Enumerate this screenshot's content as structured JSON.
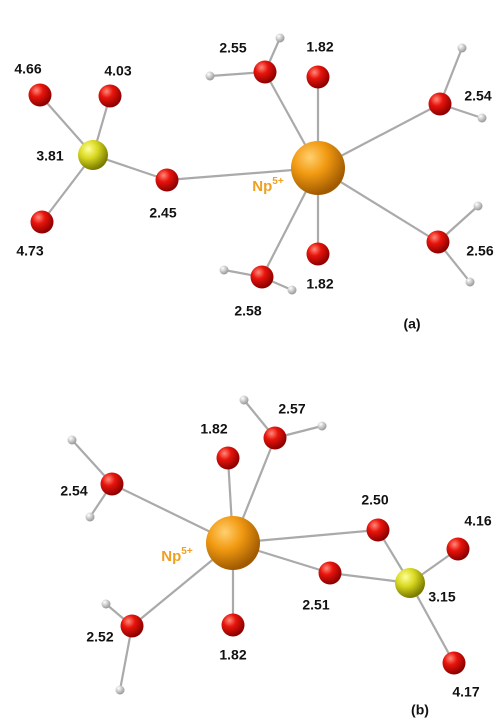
{
  "panels": [
    {
      "label": "(a)",
      "ion": {
        "symbol": "Np",
        "charge": "5+"
      },
      "sulfur": "3.81",
      "oxygens": [
        "4.66",
        "4.03",
        "4.73",
        "2.45",
        "2.55",
        "1.82",
        "2.54",
        "2.56",
        "1.82",
        "2.58"
      ]
    },
    {
      "label": "(b)",
      "ion": {
        "symbol": "Np",
        "charge": "5+"
      },
      "sulfur": "3.15",
      "oxygens": [
        "1.82",
        "2.57",
        "2.54",
        "2.50",
        "4.16",
        "4.17",
        "2.51",
        "1.82",
        "2.52"
      ]
    }
  ]
}
